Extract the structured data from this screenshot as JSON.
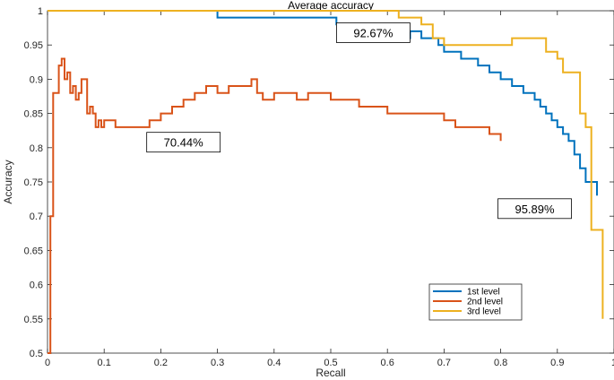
{
  "chart_data": {
    "type": "line",
    "title": "Average accuracy",
    "xlabel": "Recall",
    "ylabel": "Accuracy",
    "xlim": [
      0,
      1
    ],
    "ylim": [
      0.5,
      1
    ],
    "xticks": [
      "0",
      "0.1",
      "0.2",
      "0.3",
      "0.4",
      "0.5",
      "0.6",
      "0.7",
      "0.8",
      "0.9",
      "1"
    ],
    "yticks": [
      "0.5",
      "0.55",
      "0.6",
      "0.65",
      "0.7",
      "0.75",
      "0.8",
      "0.85",
      "0.9",
      "0.95",
      "1"
    ],
    "legend_position": "bottom-right",
    "series": [
      {
        "name": "1st level",
        "color": "#0072BD",
        "x": [
          0,
          0.3,
          0.3,
          0.51,
          0.51,
          0.58,
          0.58,
          0.62,
          0.62,
          0.64,
          0.64,
          0.66,
          0.66,
          0.69,
          0.69,
          0.7,
          0.7,
          0.73,
          0.73,
          0.76,
          0.76,
          0.78,
          0.78,
          0.8,
          0.8,
          0.82,
          0.82,
          0.84,
          0.84,
          0.86,
          0.86,
          0.87,
          0.87,
          0.88,
          0.88,
          0.89,
          0.89,
          0.9,
          0.9,
          0.91,
          0.91,
          0.92,
          0.92,
          0.93,
          0.93,
          0.94,
          0.94,
          0.95,
          0.95,
          0.96,
          0.96,
          0.97,
          0.97
        ],
        "y": [
          1,
          1,
          0.99,
          0.99,
          0.98,
          0.98,
          0.97,
          0.97,
          0.96,
          0.96,
          0.97,
          0.97,
          0.96,
          0.96,
          0.95,
          0.95,
          0.94,
          0.94,
          0.93,
          0.93,
          0.92,
          0.92,
          0.91,
          0.91,
          0.9,
          0.9,
          0.89,
          0.89,
          0.88,
          0.88,
          0.87,
          0.87,
          0.86,
          0.86,
          0.85,
          0.85,
          0.84,
          0.84,
          0.83,
          0.83,
          0.82,
          0.82,
          0.81,
          0.81,
          0.79,
          0.79,
          0.77,
          0.77,
          0.75,
          0.75,
          0.75,
          0.75,
          0.73
        ]
      },
      {
        "name": "2nd level",
        "color": "#D95319",
        "x": [
          0,
          0.005,
          0.005,
          0.01,
          0.01,
          0.02,
          0.02,
          0.025,
          0.025,
          0.03,
          0.03,
          0.035,
          0.035,
          0.04,
          0.04,
          0.045,
          0.045,
          0.05,
          0.05,
          0.055,
          0.055,
          0.06,
          0.06,
          0.07,
          0.07,
          0.075,
          0.075,
          0.08,
          0.08,
          0.085,
          0.085,
          0.09,
          0.09,
          0.095,
          0.095,
          0.1,
          0.1,
          0.11,
          0.11,
          0.12,
          0.12,
          0.13,
          0.13,
          0.14,
          0.14,
          0.16,
          0.16,
          0.18,
          0.18,
          0.2,
          0.2,
          0.22,
          0.22,
          0.24,
          0.24,
          0.26,
          0.26,
          0.28,
          0.28,
          0.3,
          0.3,
          0.32,
          0.32,
          0.34,
          0.34,
          0.36,
          0.36,
          0.37,
          0.37,
          0.38,
          0.38,
          0.4,
          0.4,
          0.42,
          0.42,
          0.44,
          0.44,
          0.46,
          0.46,
          0.5,
          0.5,
          0.55,
          0.55,
          0.6,
          0.6,
          0.65,
          0.65,
          0.7,
          0.7,
          0.72,
          0.72,
          0.75,
          0.75,
          0.78,
          0.78,
          0.79,
          0.79,
          0.8,
          0.8
        ],
        "y": [
          0.5,
          0.5,
          0.7,
          0.7,
          0.88,
          0.88,
          0.92,
          0.92,
          0.93,
          0.93,
          0.9,
          0.9,
          0.91,
          0.91,
          0.88,
          0.88,
          0.89,
          0.89,
          0.87,
          0.87,
          0.88,
          0.88,
          0.9,
          0.9,
          0.85,
          0.85,
          0.86,
          0.86,
          0.85,
          0.85,
          0.83,
          0.83,
          0.84,
          0.84,
          0.83,
          0.83,
          0.84,
          0.84,
          0.84,
          0.84,
          0.83,
          0.83,
          0.83,
          0.83,
          0.83,
          0.83,
          0.83,
          0.83,
          0.84,
          0.84,
          0.85,
          0.85,
          0.86,
          0.86,
          0.87,
          0.87,
          0.88,
          0.88,
          0.89,
          0.89,
          0.88,
          0.88,
          0.89,
          0.89,
          0.89,
          0.89,
          0.9,
          0.9,
          0.88,
          0.88,
          0.87,
          0.87,
          0.88,
          0.88,
          0.88,
          0.88,
          0.87,
          0.87,
          0.88,
          0.88,
          0.87,
          0.87,
          0.86,
          0.86,
          0.85,
          0.85,
          0.85,
          0.85,
          0.84,
          0.84,
          0.83,
          0.83,
          0.83,
          0.83,
          0.82,
          0.82,
          0.82,
          0.82,
          0.81
        ]
      },
      {
        "name": "3rd level",
        "color": "#EDB120",
        "x": [
          0,
          0.62,
          0.62,
          0.66,
          0.66,
          0.68,
          0.68,
          0.7,
          0.7,
          0.75,
          0.75,
          0.82,
          0.82,
          0.84,
          0.84,
          0.88,
          0.88,
          0.9,
          0.9,
          0.91,
          0.91,
          0.94,
          0.94,
          0.95,
          0.95,
          0.96,
          0.96,
          0.98,
          0.98
        ],
        "y": [
          1,
          1,
          0.99,
          0.99,
          0.98,
          0.98,
          0.96,
          0.96,
          0.95,
          0.95,
          0.95,
          0.95,
          0.96,
          0.96,
          0.96,
          0.96,
          0.94,
          0.94,
          0.93,
          0.93,
          0.91,
          0.91,
          0.85,
          0.85,
          0.83,
          0.83,
          0.68,
          0.68,
          0.55
        ]
      }
    ],
    "annotations": [
      {
        "text": "92.67%",
        "x": 0.575,
        "y": 0.968
      },
      {
        "text": "70.44%",
        "x": 0.24,
        "y": 0.808
      },
      {
        "text": "95.89%",
        "x": 0.86,
        "y": 0.711
      }
    ]
  }
}
